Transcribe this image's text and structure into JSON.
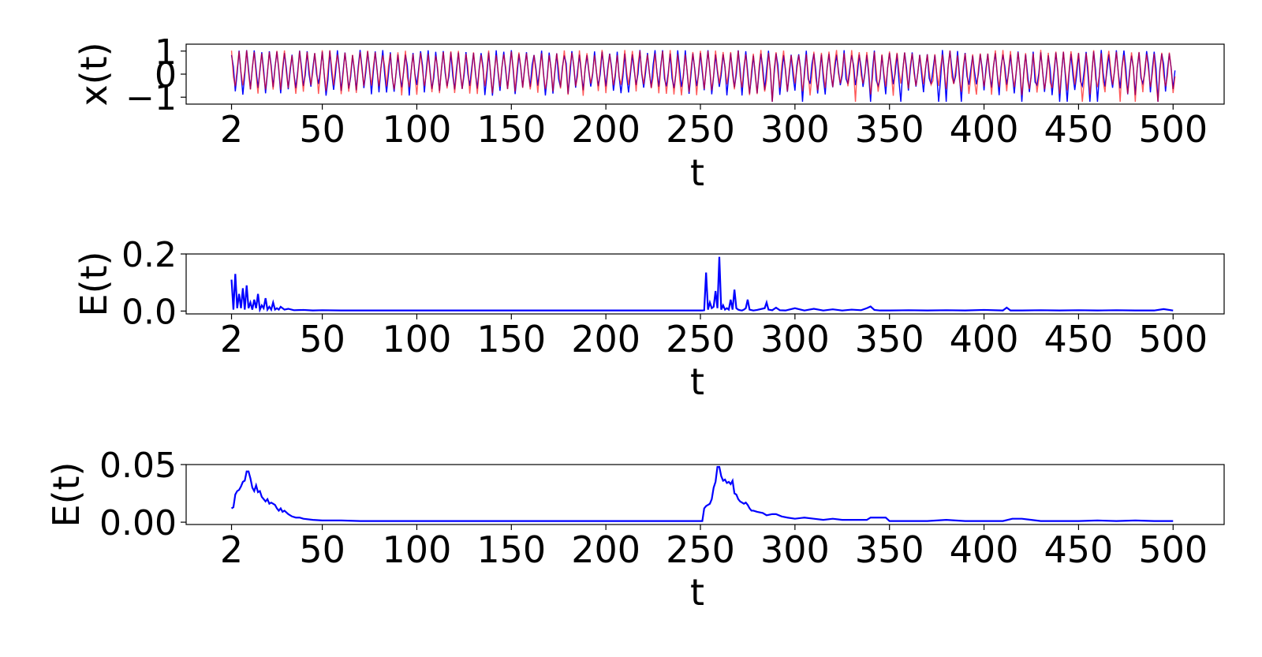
{
  "chart_data": [
    {
      "type": "line",
      "xlabel": "t",
      "ylabel": "x(t)",
      "xlim": [
        -22,
        527
      ],
      "ylim": [
        -1.3,
        1.3
      ],
      "xticks": [
        2,
        50,
        100,
        150,
        200,
        250,
        300,
        350,
        400,
        450,
        500
      ],
      "xtick_labels": [
        "2",
        "50",
        "100",
        "150",
        "200",
        "250",
        "300",
        "350",
        "400",
        "450",
        "500"
      ],
      "yticks": [
        -1,
        0,
        1
      ],
      "ytick_labels": [
        "−1",
        "0",
        "1"
      ],
      "series": [
        {
          "color": "#0000ff",
          "shape": "oscillation",
          "x_range": [
            2,
            501
          ],
          "period": 4,
          "low": -0.95,
          "high": 1.05,
          "segment_change_at": 252
        },
        {
          "color": "#ff0000",
          "shape": "oscillation",
          "x_range": [
            2,
            501
          ],
          "period": 4,
          "low": -0.95,
          "high": 1.05,
          "segment_change_at": 252
        }
      ]
    },
    {
      "type": "line",
      "xlabel": "t",
      "ylabel": "E(t)",
      "xlim": [
        -22,
        527
      ],
      "ylim": [
        -0.01,
        0.2
      ],
      "xticks": [
        2,
        50,
        100,
        150,
        200,
        250,
        300,
        350,
        400,
        450,
        500
      ],
      "xtick_labels": [
        "2",
        "50",
        "100",
        "150",
        "200",
        "250",
        "300",
        "350",
        "400",
        "450",
        "500"
      ],
      "yticks": [
        0.0,
        0.2
      ],
      "ytick_labels": [
        "0.0",
        "0.2"
      ],
      "series": [
        {
          "color": "#0000ff",
          "x": [
            2,
            3,
            4,
            5,
            6,
            7,
            8,
            9,
            10,
            11,
            12,
            13,
            14,
            15,
            16,
            17,
            18,
            19,
            20,
            21,
            22,
            23,
            24,
            25,
            26,
            27,
            28,
            30,
            32,
            35,
            40,
            45,
            50,
            60,
            70,
            80,
            90,
            100,
            120,
            140,
            160,
            180,
            200,
            220,
            240,
            250,
            251,
            252,
            253,
            254,
            255,
            256,
            257,
            258,
            259,
            260,
            261,
            262,
            263,
            264,
            265,
            266,
            267,
            268,
            269,
            270,
            271,
            272,
            273,
            274,
            275,
            276,
            278,
            280,
            284,
            285,
            286,
            288,
            290,
            292,
            295,
            300,
            305,
            310,
            315,
            320,
            325,
            330,
            335,
            338,
            340,
            342,
            345,
            350,
            360,
            370,
            380,
            390,
            400,
            410,
            412,
            414,
            420,
            430,
            440,
            450,
            460,
            470,
            480,
            490,
            495,
            500
          ],
          "y": [
            0.11,
            0.005,
            0.13,
            0.01,
            0.06,
            0.01,
            0.08,
            0.005,
            0.09,
            0.01,
            0.03,
            0.005,
            0.04,
            0.01,
            0.06,
            0.005,
            0.02,
            0.01,
            0.045,
            0.005,
            0.015,
            0.005,
            0.03,
            0.005,
            0.01,
            0.005,
            0.015,
            0.005,
            0.008,
            0.003,
            0.004,
            0.002,
            0.003,
            0.002,
            0.002,
            0.002,
            0.002,
            0.002,
            0.002,
            0.002,
            0.002,
            0.002,
            0.002,
            0.002,
            0.002,
            0.002,
            0.002,
            0.003,
            0.135,
            0.005,
            0.03,
            0.01,
            0.015,
            0.07,
            0.01,
            0.19,
            0.005,
            0.02,
            0.005,
            0.01,
            0.005,
            0.04,
            0.005,
            0.075,
            0.01,
            0.005,
            0.003,
            0.002,
            0.005,
            0.01,
            0.04,
            0.005,
            0.002,
            0.004,
            0.01,
            0.03,
            0.005,
            0.003,
            0.012,
            0.003,
            0.002,
            0.01,
            0.002,
            0.008,
            0.002,
            0.006,
            0.002,
            0.005,
            0.003,
            0.01,
            0.016,
            0.004,
            0.002,
            0.002,
            0.003,
            0.002,
            0.003,
            0.002,
            0.004,
            0.002,
            0.012,
            0.002,
            0.002,
            0.003,
            0.002,
            0.003,
            0.002,
            0.003,
            0.002,
            0.002,
            0.007,
            0.002
          ]
        }
      ]
    },
    {
      "type": "line",
      "xlabel": "t",
      "ylabel": "E(t)",
      "xlim": [
        -22,
        527
      ],
      "ylim": [
        -0.002,
        0.05
      ],
      "xticks": [
        2,
        50,
        100,
        150,
        200,
        250,
        300,
        350,
        400,
        450,
        500
      ],
      "xtick_labels": [
        "2",
        "50",
        "100",
        "150",
        "200",
        "250",
        "300",
        "350",
        "400",
        "450",
        "500"
      ],
      "yticks": [
        0.0,
        0.05
      ],
      "ytick_labels": [
        "0.00",
        "0.05"
      ],
      "series": [
        {
          "color": "#0000ff",
          "x": [
            2,
            3,
            4,
            5,
            6,
            7,
            8,
            9,
            10,
            11,
            12,
            13,
            14,
            15,
            16,
            17,
            18,
            19,
            20,
            21,
            22,
            23,
            24,
            25,
            26,
            27,
            28,
            29,
            30,
            32,
            34,
            36,
            38,
            40,
            45,
            50,
            60,
            70,
            80,
            100,
            120,
            150,
            180,
            200,
            220,
            250,
            251,
            252,
            253,
            254,
            255,
            256,
            257,
            258,
            259,
            260,
            261,
            262,
            263,
            264,
            265,
            266,
            267,
            268,
            269,
            270,
            271,
            272,
            273,
            274,
            275,
            276,
            277,
            278,
            280,
            283,
            285,
            288,
            290,
            293,
            296,
            300,
            305,
            310,
            315,
            320,
            325,
            330,
            335,
            338,
            340,
            345,
            348,
            350,
            360,
            370,
            380,
            390,
            400,
            410,
            415,
            420,
            425,
            430,
            440,
            450,
            460,
            470,
            480,
            490,
            500
          ],
          "y": [
            0.012,
            0.013,
            0.024,
            0.027,
            0.028,
            0.031,
            0.035,
            0.036,
            0.044,
            0.044,
            0.038,
            0.03,
            0.027,
            0.032,
            0.026,
            0.027,
            0.022,
            0.02,
            0.018,
            0.02,
            0.016,
            0.017,
            0.016,
            0.015,
            0.012,
            0.01,
            0.012,
            0.009,
            0.01,
            0.007,
            0.005,
            0.004,
            0.004,
            0.003,
            0.002,
            0.0015,
            0.0015,
            0.001,
            0.001,
            0.001,
            0.001,
            0.001,
            0.001,
            0.001,
            0.001,
            0.001,
            0.001,
            0.012,
            0.014,
            0.015,
            0.016,
            0.02,
            0.03,
            0.035,
            0.048,
            0.048,
            0.04,
            0.036,
            0.037,
            0.034,
            0.035,
            0.033,
            0.036,
            0.025,
            0.024,
            0.02,
            0.018,
            0.017,
            0.016,
            0.017,
            0.015,
            0.012,
            0.01,
            0.01,
            0.009,
            0.008,
            0.006,
            0.007,
            0.007,
            0.005,
            0.004,
            0.003,
            0.004,
            0.003,
            0.002,
            0.003,
            0.002,
            0.002,
            0.002,
            0.002,
            0.004,
            0.004,
            0.004,
            0.001,
            0.001,
            0.001,
            0.002,
            0.001,
            0.001,
            0.001,
            0.003,
            0.003,
            0.002,
            0.001,
            0.001,
            0.001,
            0.0015,
            0.001,
            0.0015,
            0.001,
            0.001
          ]
        }
      ]
    }
  ]
}
